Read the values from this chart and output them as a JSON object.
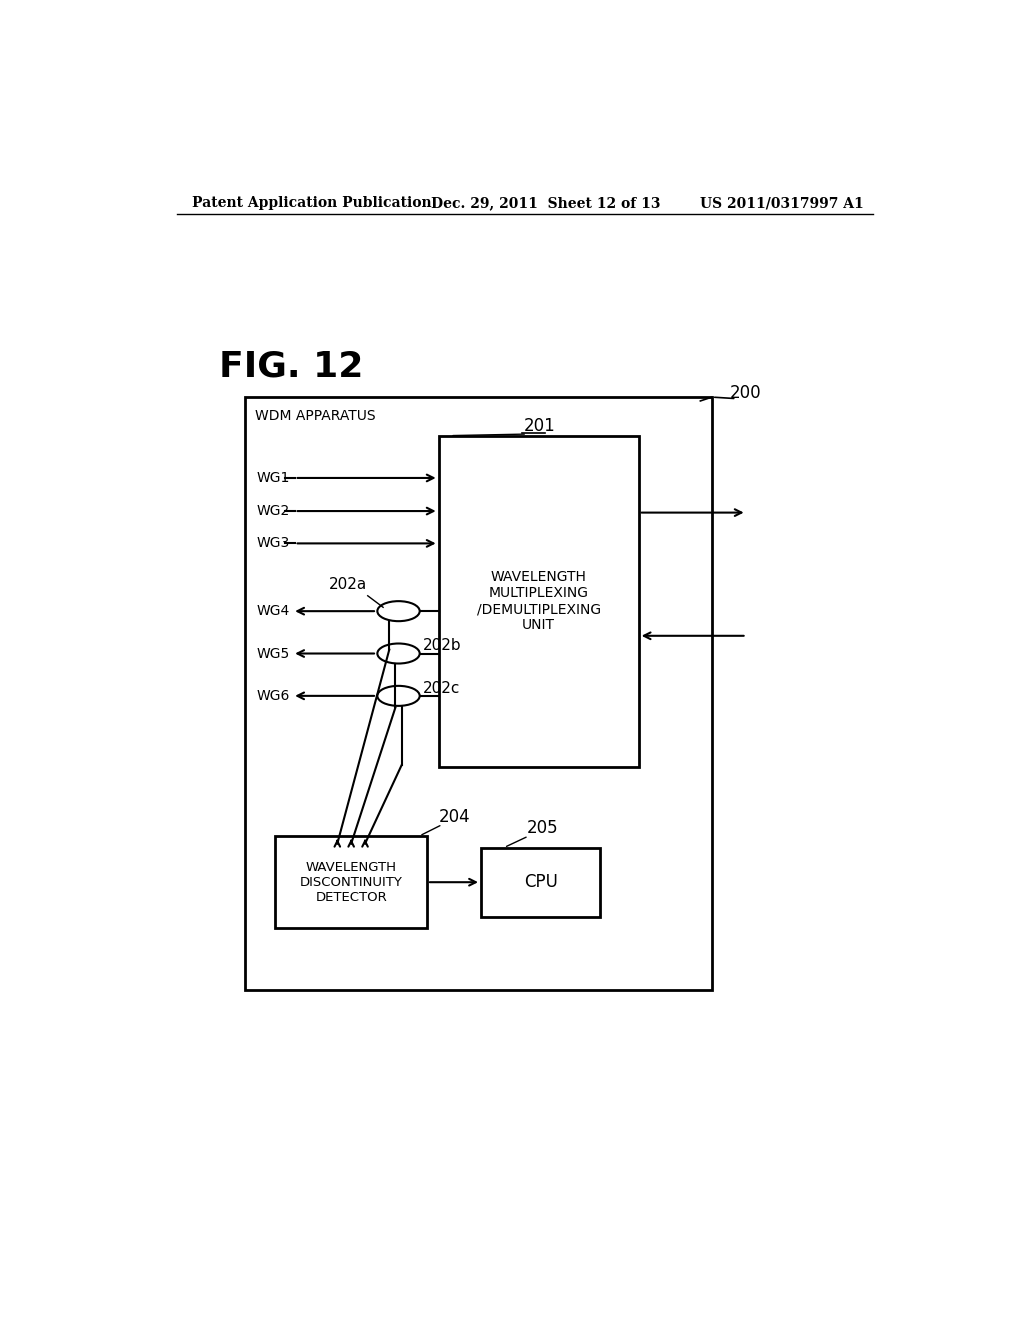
{
  "fig_label": "FIG. 12",
  "header_left": "Patent Application Publication",
  "header_mid": "Dec. 29, 2011  Sheet 12 of 13",
  "header_right": "US 2011/0317997 A1",
  "outer_box_label": "200",
  "wdm_label": "WDM APPARATUS",
  "mux_box_label": "201",
  "mux_text": "WAVELENGTH\nMULTIPLEXING\n/DEMULTIPLEXING\nUNIT",
  "wg_in_labels": [
    "WG1",
    "WG2",
    "WG3"
  ],
  "wg_out_labels": [
    "WG4",
    "WG5",
    "WG6"
  ],
  "coupler_labels": [
    "202a",
    "202b",
    "202c"
  ],
  "detector_label": "204",
  "detector_text": "WAVELENGTH\nDISCONTINUITY\nDETECTOR",
  "cpu_label": "205",
  "cpu_text": "CPU",
  "bg_color": "#ffffff",
  "line_color": "#000000"
}
